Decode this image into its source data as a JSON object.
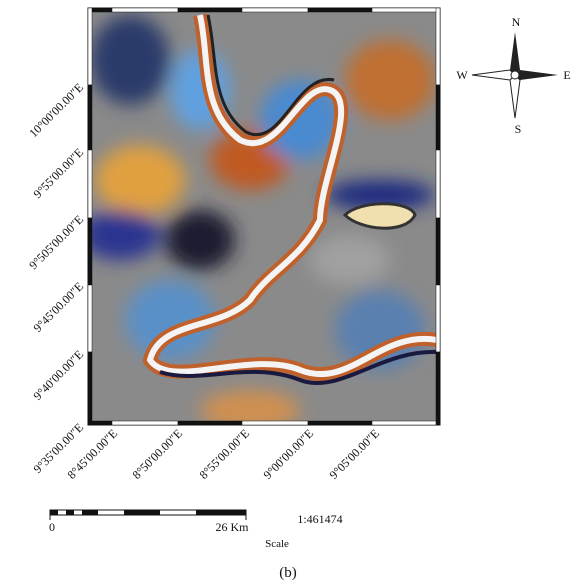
{
  "map": {
    "left_labels": [
      "10°00′00.00″E",
      "9°55′00.00″E",
      "9°505′00.00″E",
      "9°45′00.00″E",
      "9°40′00.00″E",
      "9°35′00.00″E"
    ],
    "bottom_labels": [
      "8°45′00.00″E",
      "8°50′00.00″E",
      "8°55′00.00″E",
      "9°00′00.00″E",
      "9°05′00.00″E"
    ]
  },
  "compass": {
    "n": "N",
    "e": "E",
    "s": "S",
    "w": "W"
  },
  "scale": {
    "start": "0",
    "end": "26 Km",
    "title": "Scale",
    "ratio": "1:461474"
  },
  "caption": "(b)"
}
